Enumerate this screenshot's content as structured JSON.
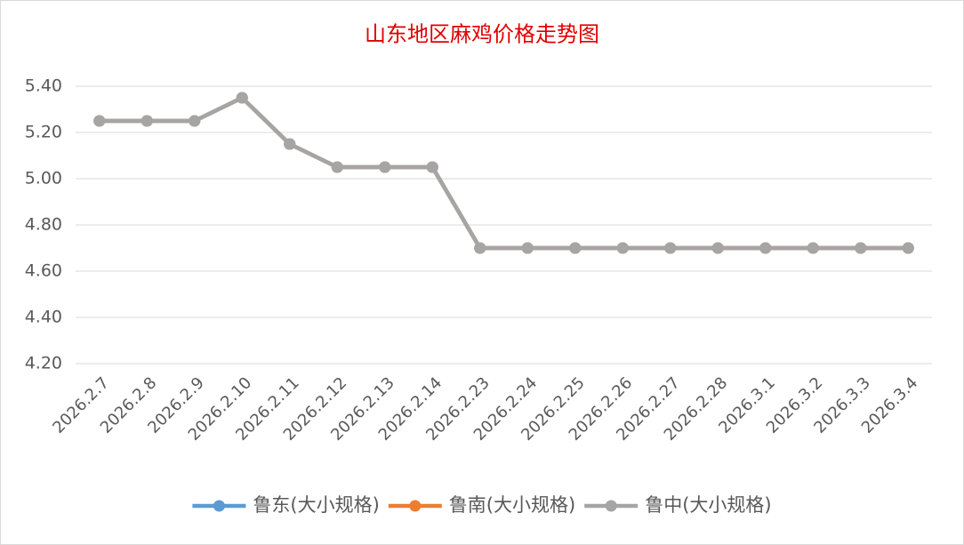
{
  "chart_data": {
    "type": "line",
    "title": "山东地区麻鸡价格走势图",
    "categories": [
      "2026.2.7",
      "2026.2.8",
      "2026.2.9",
      "2026.2.10",
      "2026.2.11",
      "2026.2.12",
      "2026.2.13",
      "2026.2.14",
      "2026.2.23",
      "2026.2.24",
      "2026.2.25",
      "2026.2.26",
      "2026.2.27",
      "2026.2.28",
      "2026.3.1",
      "2026.3.2",
      "2026.3.3",
      "2026.3.4"
    ],
    "series": [
      {
        "name": "鲁东(大小规格)",
        "color": "#5b9bd5",
        "values": [
          5.25,
          5.25,
          5.25,
          5.35,
          5.15,
          5.05,
          5.05,
          5.05,
          4.7,
          4.7,
          4.7,
          4.7,
          4.7,
          4.7,
          4.7,
          4.7,
          4.7,
          4.7
        ]
      },
      {
        "name": "鲁南(大小规格)",
        "color": "#ed7d31",
        "values": [
          5.25,
          5.25,
          5.25,
          5.35,
          5.15,
          5.05,
          5.05,
          5.05,
          4.7,
          4.7,
          4.7,
          4.7,
          4.7,
          4.7,
          4.7,
          4.7,
          4.7,
          4.7
        ]
      },
      {
        "name": "鲁中(大小规格)",
        "color": "#a5a5a5",
        "values": [
          5.25,
          5.25,
          5.25,
          5.35,
          5.15,
          5.05,
          5.05,
          5.05,
          4.7,
          4.7,
          4.7,
          4.7,
          4.7,
          4.7,
          4.7,
          4.7,
          4.7,
          4.7
        ]
      }
    ],
    "ylim": [
      4.2,
      5.4
    ],
    "yticks": [
      {
        "value": 4.2,
        "label": "4.20"
      },
      {
        "value": 4.4,
        "label": "4.40"
      },
      {
        "value": 4.6,
        "label": "4.60"
      },
      {
        "value": 4.8,
        "label": "4.80"
      },
      {
        "value": 5.0,
        "label": "5.00"
      },
      {
        "value": 5.2,
        "label": "5.20"
      },
      {
        "value": 5.4,
        "label": "5.40"
      }
    ],
    "grid": true,
    "legend": "bottom"
  }
}
